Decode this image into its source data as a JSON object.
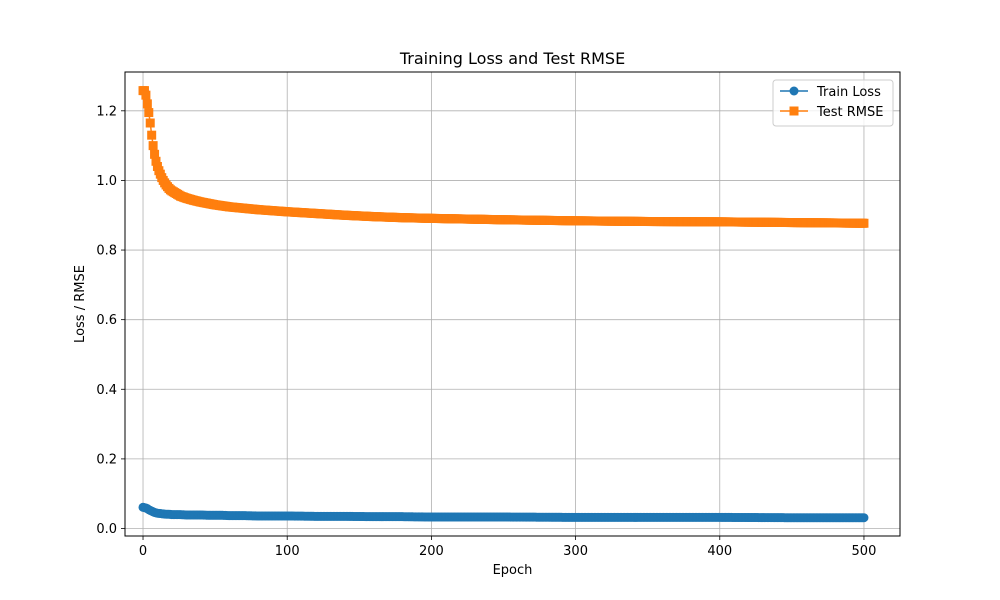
{
  "chart_data": {
    "type": "line",
    "title": "Training Loss and Test RMSE",
    "xlabel": "Epoch",
    "ylabel": "Loss / RMSE",
    "xlim": [
      -12.5,
      525
    ],
    "ylim": [
      -0.0215,
      1.3115
    ],
    "xticks": [
      0,
      100,
      200,
      300,
      400,
      500
    ],
    "yticks": [
      0.0,
      0.2,
      0.4,
      0.6,
      0.8,
      1.0,
      1.2
    ],
    "xtick_labels": [
      "0",
      "100",
      "200",
      "300",
      "400",
      "500"
    ],
    "ytick_labels": [
      "0.0",
      "0.2",
      "0.4",
      "0.6",
      "0.8",
      "1.0",
      "1.2"
    ],
    "grid": true,
    "legend_position": "top-right",
    "series": [
      {
        "name": "Train Loss",
        "color": "#1f77b4",
        "marker": "circle",
        "x": [
          0,
          1,
          2,
          3,
          4,
          5,
          6,
          7,
          8,
          9,
          10,
          12,
          14,
          16,
          18,
          20,
          25,
          30,
          35,
          40,
          45,
          50,
          55,
          60,
          70,
          80,
          90,
          100,
          120,
          140,
          160,
          180,
          200,
          250,
          300,
          350,
          400,
          450,
          500
        ],
        "y": [
          0.061,
          0.06,
          0.059,
          0.057,
          0.054,
          0.052,
          0.05,
          0.048,
          0.046,
          0.045,
          0.044,
          0.043,
          0.042,
          0.041,
          0.041,
          0.04,
          0.04,
          0.039,
          0.039,
          0.039,
          0.038,
          0.038,
          0.038,
          0.037,
          0.037,
          0.036,
          0.036,
          0.036,
          0.035,
          0.035,
          0.034,
          0.034,
          0.033,
          0.033,
          0.032,
          0.032,
          0.032,
          0.031,
          0.031
        ]
      },
      {
        "name": "Test RMSE",
        "color": "#ff7f0e",
        "marker": "square",
        "x": [
          0,
          1,
          2,
          3,
          4,
          5,
          6,
          7,
          8,
          9,
          10,
          11,
          12,
          13,
          14,
          15,
          16,
          17,
          18,
          19,
          20,
          22,
          24,
          26,
          28,
          30,
          35,
          40,
          45,
          50,
          55,
          60,
          70,
          80,
          90,
          100,
          120,
          140,
          160,
          180,
          200,
          250,
          300,
          350,
          400,
          450,
          500
        ],
        "y": [
          1.258,
          1.258,
          1.245,
          1.22,
          1.195,
          1.165,
          1.13,
          1.1,
          1.075,
          1.055,
          1.04,
          1.028,
          1.018,
          1.008,
          1.0,
          0.993,
          0.987,
          0.982,
          0.977,
          0.973,
          0.97,
          0.965,
          0.96,
          0.955,
          0.952,
          0.949,
          0.943,
          0.938,
          0.934,
          0.93,
          0.927,
          0.924,
          0.92,
          0.916,
          0.913,
          0.91,
          0.905,
          0.9,
          0.896,
          0.893,
          0.891,
          0.887,
          0.884,
          0.882,
          0.881,
          0.879,
          0.877
        ]
      }
    ]
  }
}
